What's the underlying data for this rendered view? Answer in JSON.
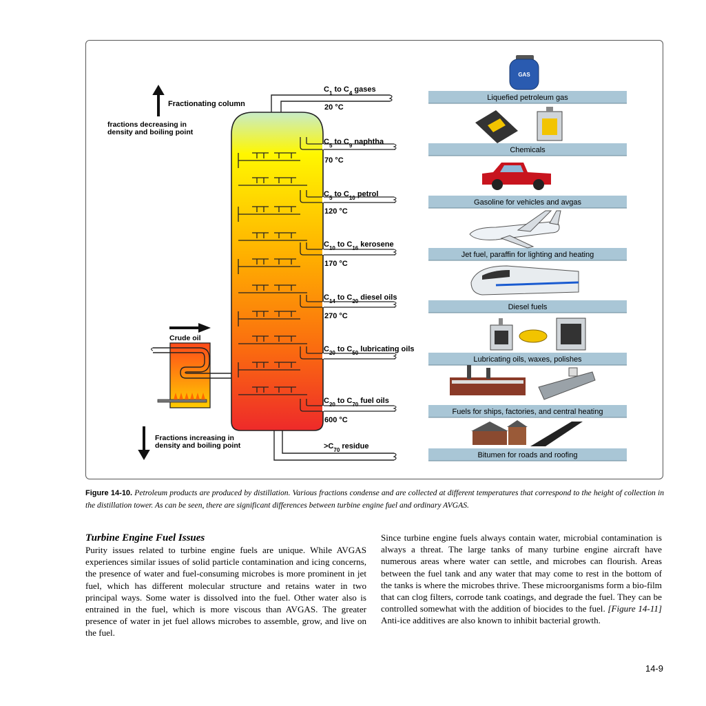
{
  "figure": {
    "column_title": "Fractionating column",
    "top_note": "fractions decreasing in density and boiling point",
    "top_note_line1": "fractions decreasing in",
    "top_note_line2": "density and boiling point",
    "bottom_note_line1": "Fractions increasing in",
    "bottom_note_line2": "density and boiling point",
    "crude_oil_label": "Crude oil",
    "fractions": [
      {
        "prefix": "C",
        "sub1": "1",
        "mid": " to C",
        "sub2": "4",
        "suffix": " gases",
        "temp": "20 °C",
        "product": "Liquefied petroleum gas"
      },
      {
        "prefix": "C",
        "sub1": "5",
        "mid": " to C",
        "sub2": "9",
        "suffix": " naphtha",
        "temp": "70 °C",
        "product": "Chemicals"
      },
      {
        "prefix": "C",
        "sub1": "5",
        "mid": " to C",
        "sub2": "10",
        "suffix": " petrol",
        "temp": "120 °C",
        "product": "Gasoline for vehicles and avgas"
      },
      {
        "prefix": "C",
        "sub1": "10",
        "mid": " to C",
        "sub2": "16",
        "suffix": " kerosene",
        "temp": "170 °C",
        "product": "Jet fuel, paraffin for lighting and heating"
      },
      {
        "prefix": "C",
        "sub1": "14",
        "mid": " to C",
        "sub2": "20",
        "suffix": " diesel oils",
        "temp": "270 °C",
        "product": "Diesel fuels"
      },
      {
        "prefix": "C",
        "sub1": "20",
        "mid": " to C",
        "sub2": "50",
        "suffix": " lubricating oils",
        "temp": "",
        "product": "Lubricating oils, waxes, polishes"
      },
      {
        "prefix": "C",
        "sub1": "20",
        "mid": " to C",
        "sub2": "70",
        "suffix": " fuel oils",
        "temp": "600 °C",
        "product": "Fuels for ships, factories, and central heating"
      },
      {
        "prefix": ">C",
        "sub1": "70",
        "mid": " residue",
        "sub2": "",
        "suffix": "",
        "temp": "",
        "product": "Bitumen for roads and roofing"
      }
    ],
    "gas_tank_label": "GAS"
  },
  "caption": {
    "label": "Figure 14-10.",
    "text": "Petroleum products are produced by distillation. Various fractions condense and are collected at different temperatures that correspond to the height of collection in the distillation tower. As can be seen, there are significant differences between turbine engine fuel and ordinary AVGAS."
  },
  "article": {
    "heading": "Turbine Engine Fuel Issues",
    "left_paragraph": "Purity issues related to turbine engine fuels are unique. While AVGAS experiences similar issues of solid particle contamination and icing concerns, the presence of water and fuel-consuming microbes is more prominent in jet fuel, which has different molecular structure and retains water in two principal ways. Some water is dissolved into the fuel. Other water also is entrained in the fuel, which is more viscous than AVGAS. The greater presence of water in jet fuel allows microbes to assemble, grow, and live on the fuel.",
    "right_paragraph_a": "Since turbine engine fuels always contain water, microbial contamination is always a threat. The large tanks of many turbine engine aircraft have numerous areas where water can settle, and microbes can flourish. Areas between the fuel tank and any water that may come to rest in the bottom of the tanks is where the microbes thrive. These microorganisms form a bio-film that can clog filters, corrode tank coatings, and degrade the fuel. They can be controlled somewhat with the addition of biocides to the fuel.",
    "right_figref": "[Figure 14-11]",
    "right_paragraph_b": " Anti-ice additives are also known to inhibit bacterial growth."
  },
  "page_number": "14-9",
  "colors": {
    "column_top": "#c8ecc8",
    "column_mid": "#ffee00",
    "column_bottom": "#ee2a2a",
    "product_bar": "#a9c6d6"
  }
}
